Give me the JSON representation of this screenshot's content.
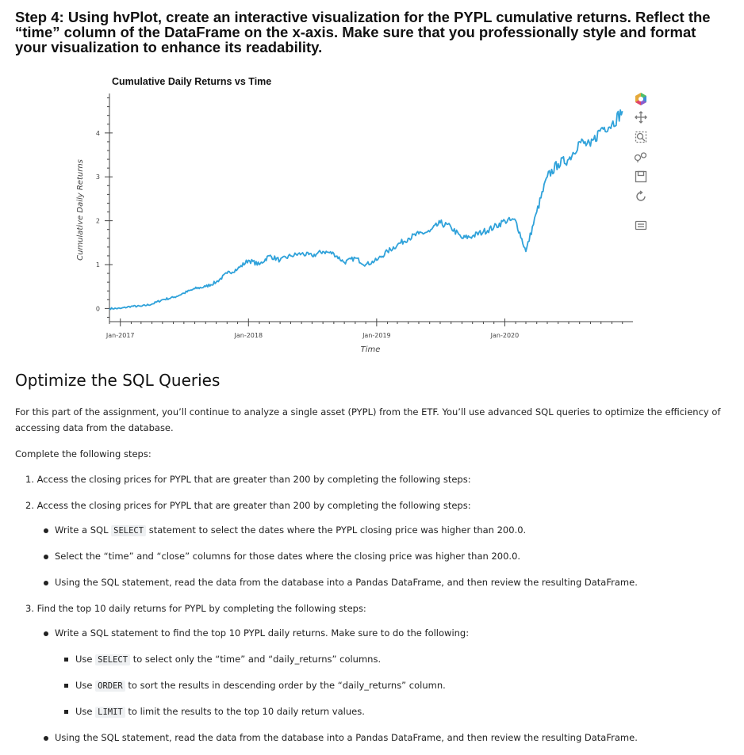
{
  "step": {
    "title": "Step 4: Using hvPlot, create an interactive visualization for the PYPL cumulative returns. Reflect the “time” column of the DataFrame on the x-axis. Make sure that you professionally style and format your visualization to enhance its readability."
  },
  "chart_data": {
    "type": "line",
    "title": "Cumulative Daily Returns vs Time",
    "xlabel": "Time",
    "ylabel": "Cumulative Daily Returns",
    "x_ticks": [
      "Jan-2017",
      "Jan-2018",
      "Jan-2019",
      "Jan-2020"
    ],
    "y_ticks": [
      "0",
      "1",
      "2",
      "3",
      "4"
    ],
    "xlim": [
      "2016-12-01",
      "2020-12-31"
    ],
    "ylim": [
      -0.3,
      4.9
    ],
    "line_color": "#30a2da",
    "grid": false,
    "series": [
      {
        "x": [
          "2016-12-01",
          "2017-01-01",
          "2017-02-01",
          "2017-03-01",
          "2017-04-01",
          "2017-05-01",
          "2017-06-01",
          "2017-07-01",
          "2017-08-01",
          "2017-09-01",
          "2017-10-01",
          "2017-11-01",
          "2017-12-01",
          "2018-01-01",
          "2018-02-01",
          "2018-03-01",
          "2018-04-01",
          "2018-05-01",
          "2018-06-01",
          "2018-07-01",
          "2018-08-01",
          "2018-09-01",
          "2018-10-01",
          "2018-11-01",
          "2018-12-01",
          "2019-01-01",
          "2019-02-01",
          "2019-03-01",
          "2019-04-01",
          "2019-05-01",
          "2019-06-01",
          "2019-07-01",
          "2019-08-01",
          "2019-09-01",
          "2019-10-01",
          "2019-11-01",
          "2019-12-01",
          "2020-01-01",
          "2020-02-01",
          "2020-03-01",
          "2020-04-01",
          "2020-05-01",
          "2020-06-01",
          "2020-07-01",
          "2020-08-01",
          "2020-09-01",
          "2020-10-01",
          "2020-11-01",
          "2020-12-01"
        ],
        "y": [
          0.0,
          0.0,
          0.05,
          0.05,
          0.1,
          0.2,
          0.25,
          0.35,
          0.45,
          0.5,
          0.6,
          0.8,
          0.9,
          1.1,
          1.0,
          1.2,
          1.1,
          1.2,
          1.25,
          1.2,
          1.3,
          1.25,
          1.05,
          1.15,
          1.0,
          1.1,
          1.3,
          1.45,
          1.6,
          1.7,
          1.75,
          1.95,
          1.85,
          1.6,
          1.65,
          1.75,
          1.85,
          2.0,
          2.0,
          1.3,
          2.2,
          3.0,
          3.3,
          3.4,
          3.8,
          3.7,
          4.1,
          4.2,
          4.5
        ]
      }
    ]
  },
  "toolbar": {
    "icons": [
      "bokeh-logo-icon",
      "pan-icon",
      "box-zoom-icon",
      "wheel-zoom-icon",
      "save-icon",
      "reset-icon",
      "hover-icon"
    ]
  },
  "section": {
    "title": "Optimize the SQL Queries",
    "intro_1": "For this part of the assignment, you’ll continue to analyze a single asset (PYPL) from the ETF. You’ll use advanced SQL queries to optimize the efficiency of",
    "intro_2": "accessing data from the database.",
    "complete": "Complete the following steps:",
    "item1": "1. Access the closing prices for PYPL that are greater than 200 by completing the following steps:",
    "item2": "2. Access the closing prices for PYPL that are greater than 200 by completing the following steps:",
    "b1_pre": "Write a SQL",
    "b1_code": "SELECT",
    "b1_post": "statement to select the dates where the PYPL closing price was higher than 200.0.",
    "b2": "Select the “time” and “close” columns for those dates where the closing price was higher than 200.0.",
    "b3": "Using the SQL statement, read the data from the database into a Pandas DataFrame, and then review the resulting DataFrame.",
    "item3": "3. Find the top 10 daily returns for PYPL by completing the following steps:",
    "c1": "Write a SQL statement to find the top 10 PYPL daily returns. Make sure to do the following:",
    "s1_pre": "Use",
    "s1_code": "SELECT",
    "s1_post": "to select only the “time” and “daily_returns” columns.",
    "s2_pre": "Use",
    "s2_code": "ORDER",
    "s2_post": "to sort the results in descending order by the “daily_returns” column.",
    "s3_pre": "Use",
    "s3_code": "LIMIT",
    "s3_post": "to limit the results to the top 10 daily return values.",
    "c2": "Using the SQL statement, read the data from the database into a Pandas DataFrame, and then review the resulting DataFrame."
  }
}
